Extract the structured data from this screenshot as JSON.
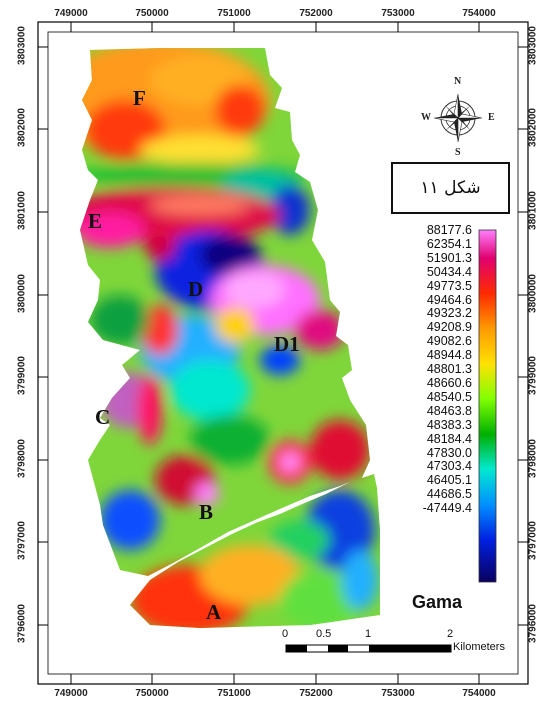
{
  "map": {
    "x_ticks": [
      "749000",
      "750000",
      "751000",
      "752000",
      "753000",
      "754000"
    ],
    "y_ticks": [
      "3803000",
      "3802000",
      "3801000",
      "3800000",
      "3799000",
      "3798000",
      "3797000",
      "3796000"
    ],
    "zones": [
      "F",
      "E",
      "D",
      "D1",
      "C",
      "B",
      "A"
    ],
    "figure_label": "شکل ۱۱",
    "compass": {
      "north": "N",
      "south": "S",
      "east": "E",
      "west": "W"
    },
    "legend": {
      "title": "Gama",
      "values": [
        "88177.6",
        "62354.1",
        "51901.3",
        "50434.4",
        "49773.5",
        "49464.6",
        "49323.2",
        "49208.9",
        "49082.6",
        "48944.8",
        "48801.3",
        "48660.6",
        "48540.5",
        "48463.8",
        "48383.3",
        "48184.4",
        "47830.0",
        "47303.4",
        "46405.1",
        "44686.5",
        "-47449.4"
      ],
      "colors": [
        "#ff80ff",
        "#ff00c8",
        "#e00070",
        "#d4002a",
        "#ff2a00",
        "#ff7a00",
        "#ffb400",
        "#ffe100",
        "#d8ff00",
        "#80ff00",
        "#00e000",
        "#00b000",
        "#00cc80",
        "#00e8d0",
        "#00c8ff",
        "#0090ff",
        "#0050ff",
        "#0020e0",
        "#1400b0",
        "#0a0060"
      ]
    },
    "scale_bar": {
      "ticks": [
        "0",
        "0.5",
        "1",
        "2"
      ],
      "unit": "Kilometers"
    }
  }
}
